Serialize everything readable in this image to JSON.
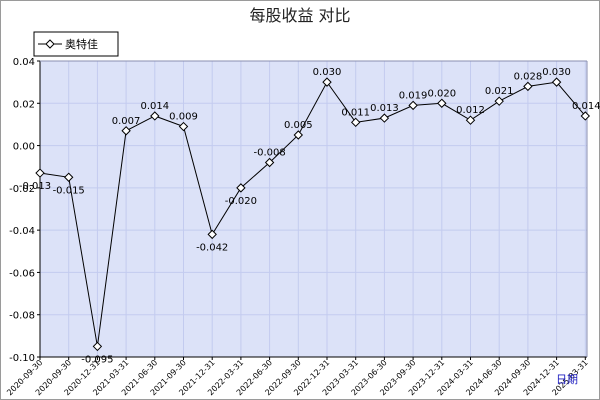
{
  "chart_data": {
    "type": "line",
    "title": "每股收益  对比",
    "legend_position": "top-left",
    "x_axis_link": "日期",
    "x": [
      "2020-09-30",
      "2020-09-30",
      "2020-12-31",
      "2021-03-31",
      "2021-06-30",
      "2021-09-30",
      "2021-12-31",
      "2022-03-31",
      "2022-06-30",
      "2022-09-30",
      "2022-12-31",
      "2023-03-31",
      "2023-06-30",
      "2023-09-30",
      "2023-12-31",
      "2024-03-31",
      "2024-06-30",
      "2024-09-30",
      "2024-12-31",
      "2025-03-31"
    ],
    "y_ticks": [
      "0.04",
      "0.02",
      "0.00",
      "-0.02",
      "-0.04",
      "-0.06",
      "-0.08",
      "-0.10"
    ],
    "ylim": [
      -0.1,
      0.04
    ],
    "grid": true,
    "series": [
      {
        "name": "奥特佳",
        "color": "#000000",
        "marker": "diamond",
        "values": [
          -0.013,
          -0.015,
          -0.095,
          0.007,
          0.014,
          0.009,
          -0.042,
          -0.02,
          -0.008,
          0.005,
          0.03,
          0.011,
          0.013,
          0.019,
          0.02,
          0.012,
          0.021,
          0.028,
          0.03,
          0.014
        ],
        "labels": [
          "-0.013",
          "-0.015",
          "-0.095",
          "0.007",
          "0.014",
          "0.009",
          "-0.042",
          "-0.020",
          "-0.008",
          "0.005",
          "0.030",
          "0.011",
          "0.013",
          "0.019",
          "0.020",
          "0.012",
          "0.021",
          "0.028",
          "0.030",
          "0.014"
        ]
      }
    ]
  },
  "colors": {
    "plot_background": "#dce2f8",
    "grid_line": "#c3cbef",
    "axis": "#000000",
    "period_link": "#2020c0"
  }
}
